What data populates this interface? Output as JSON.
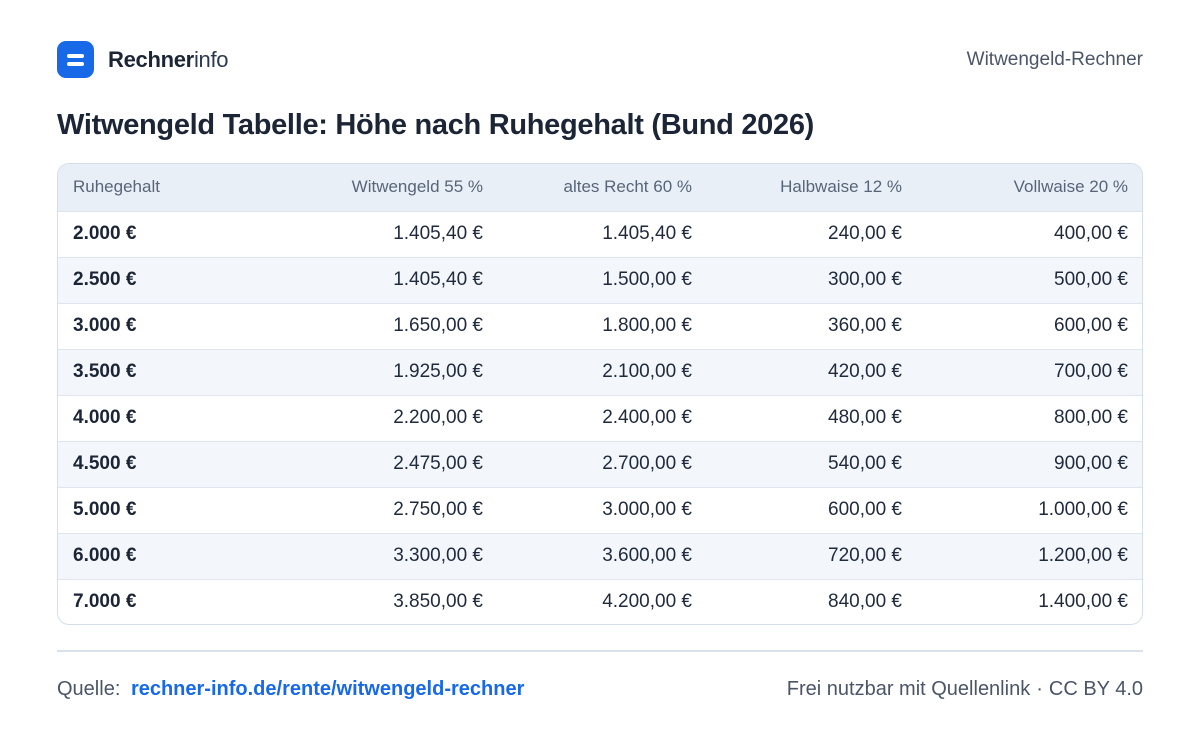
{
  "header": {
    "brand_bold": "Rechner",
    "brand_light": "info",
    "right_label": "Witwengeld-Rechner"
  },
  "title": "Witwengeld Tabelle: Höhe nach Ruhegehalt (Bund 2026)",
  "table": {
    "columns": [
      "Ruhegehalt",
      "Witwengeld 55 %",
      "altes Recht 60 %",
      "Halbwaise 12 %",
      "Vollwaise 20 %"
    ],
    "rows": [
      [
        "2.000 €",
        "1.405,40 €",
        "1.405,40 €",
        "240,00 €",
        "400,00 €"
      ],
      [
        "2.500 €",
        "1.405,40 €",
        "1.500,00 €",
        "300,00 €",
        "500,00 €"
      ],
      [
        "3.000 €",
        "1.650,00 €",
        "1.800,00 €",
        "360,00 €",
        "600,00 €"
      ],
      [
        "3.500 €",
        "1.925,00 €",
        "2.100,00 €",
        "420,00 €",
        "700,00 €"
      ],
      [
        "4.000 €",
        "2.200,00 €",
        "2.400,00 €",
        "480,00 €",
        "800,00 €"
      ],
      [
        "4.500 €",
        "2.475,00 €",
        "2.700,00 €",
        "540,00 €",
        "900,00 €"
      ],
      [
        "5.000 €",
        "2.750,00 €",
        "3.000,00 €",
        "600,00 €",
        "1.000,00 €"
      ],
      [
        "6.000 €",
        "3.300,00 €",
        "3.600,00 €",
        "720,00 €",
        "1.200,00 €"
      ],
      [
        "7.000 €",
        "3.850,00 €",
        "4.200,00 €",
        "840,00 €",
        "1.400,00 €"
      ]
    ]
  },
  "footer": {
    "source_label": "Quelle:",
    "source_link": "rechner-info.de/rente/witwengeld-rechner",
    "license_text": "Frei nutzbar mit Quellenlink",
    "separator": "·",
    "license": "CC BY 4.0"
  },
  "colors": {
    "accent": "#1769e8",
    "header_bg": "#e9eff7",
    "stripe_bg": "#f3f6fa"
  },
  "icons": {
    "logo": "rechnerinfo-logo-icon"
  }
}
